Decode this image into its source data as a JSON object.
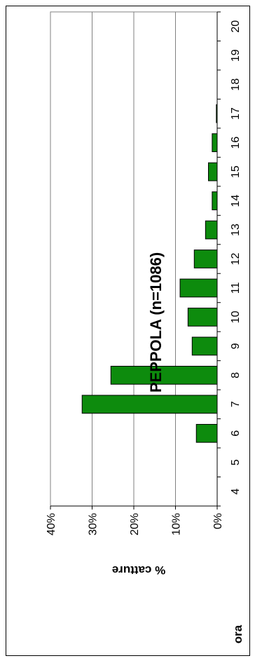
{
  "chart_data": {
    "type": "bar",
    "title": "PEPPOLA (n=1086)",
    "xlabel": "ora",
    "ylabel": "% catture",
    "categories": [
      "4",
      "5",
      "6",
      "7",
      "8",
      "9",
      "10",
      "11",
      "12",
      "13",
      "14",
      "15",
      "16",
      "17",
      "18",
      "19",
      "20"
    ],
    "values": [
      0,
      0,
      5.0,
      32.4,
      25.5,
      6.0,
      7.0,
      8.9,
      5.5,
      2.8,
      1.2,
      2.1,
      1.2,
      0.2,
      0,
      0,
      0
    ],
    "ylim": [
      0,
      40
    ],
    "yticks": [
      "0%",
      "10%",
      "20%",
      "30%",
      "40%"
    ],
    "grid": true,
    "orientation": "rotated 90° clockwise (value axis runs right-to-left along the bottom, categories run bottom-to-top)",
    "bar_color": "#0d8b0d",
    "bar_border_color": "#000000",
    "legend": "none"
  }
}
